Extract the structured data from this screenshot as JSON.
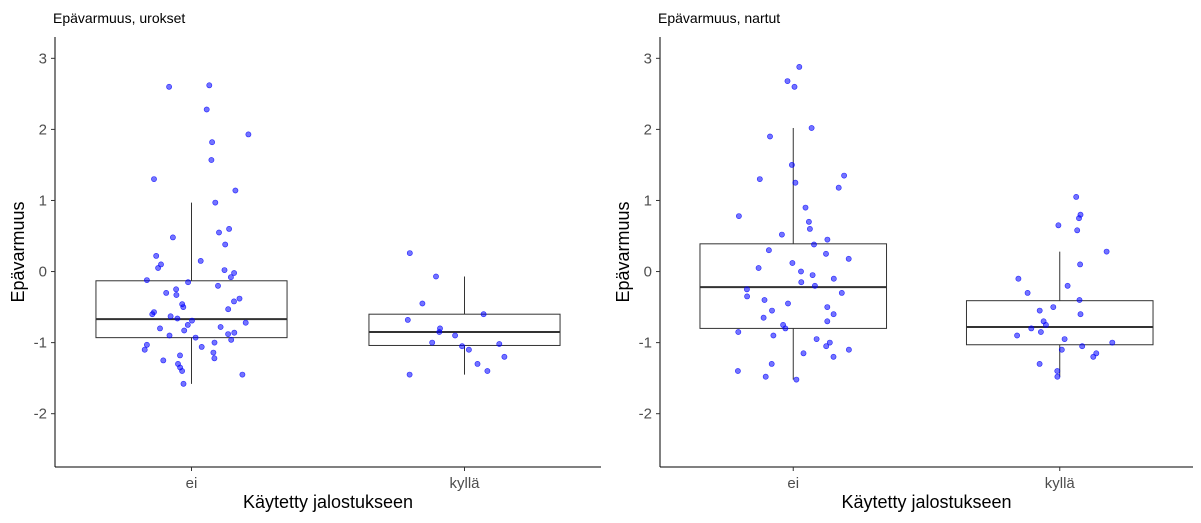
{
  "chart_data": [
    {
      "type": "boxplot",
      "title": "Epävarmuus, urokset",
      "xlabel": "Käytetty jalostukseen",
      "ylabel": "Epävarmuus",
      "categories": [
        "ei",
        "kyllä"
      ],
      "ylim": [
        -2.75,
        3.3
      ],
      "yticks": [
        -2,
        -1,
        0,
        1,
        2,
        3
      ],
      "grid": false,
      "point_color": "#0000ff",
      "boxes": [
        {
          "category": "ei",
          "lower_whisker": -1.58,
          "q1": -0.93,
          "median": -0.67,
          "q3": -0.13,
          "upper_whisker": 0.97
        },
        {
          "category": "kyllä",
          "lower_whisker": -1.45,
          "q1": -1.04,
          "median": -0.85,
          "q3": -0.6,
          "upper_whisker": -0.07
        }
      ],
      "points": [
        {
          "category": "ei",
          "values": [
            2.62,
            2.6,
            2.28,
            1.93,
            1.82,
            1.57,
            1.3,
            1.14,
            0.97,
            0.6,
            0.55,
            0.48,
            0.38,
            0.22,
            0.15,
            0.1,
            0.05,
            0.02,
            -0.02,
            -0.08,
            -0.12,
            -0.15,
            -0.2,
            -0.25,
            -0.3,
            -0.33,
            -0.38,
            -0.42,
            -0.46,
            -0.5,
            -0.53,
            -0.57,
            -0.6,
            -0.63,
            -0.66,
            -0.69,
            -0.72,
            -0.75,
            -0.78,
            -0.8,
            -0.83,
            -0.86,
            -0.88,
            -0.9,
            -0.93,
            -0.96,
            -1.0,
            -1.03,
            -1.06,
            -1.1,
            -1.14,
            -1.18,
            -1.22,
            -1.25,
            -1.3,
            -1.35,
            -1.4,
            -1.45,
            -1.58
          ]
        },
        {
          "category": "kyllä",
          "values": [
            0.26,
            -0.07,
            -0.45,
            -0.6,
            -0.68,
            -0.8,
            -0.85,
            -0.9,
            -1.0,
            -1.02,
            -1.05,
            -1.1,
            -1.2,
            -1.3,
            -1.4,
            -1.45
          ]
        }
      ]
    },
    {
      "type": "boxplot",
      "title": "Epävarmuus, nartut",
      "xlabel": "Käytetty jalostukseen",
      "ylabel": "Epävarmuus",
      "categories": [
        "ei",
        "kyllä"
      ],
      "ylim": [
        -2.75,
        3.3
      ],
      "yticks": [
        -2,
        -1,
        0,
        1,
        2,
        3
      ],
      "grid": false,
      "point_color": "#0000ff",
      "boxes": [
        {
          "category": "ei",
          "lower_whisker": -1.52,
          "q1": -0.8,
          "median": -0.22,
          "q3": 0.39,
          "upper_whisker": 2.02
        },
        {
          "category": "kyllä",
          "lower_whisker": -1.48,
          "q1": -1.03,
          "median": -0.78,
          "q3": -0.41,
          "upper_whisker": 0.28
        }
      ],
      "points": [
        {
          "category": "ei",
          "values": [
            2.88,
            2.68,
            2.6,
            2.02,
            1.9,
            1.5,
            1.35,
            1.3,
            1.25,
            1.18,
            0.9,
            0.78,
            0.7,
            0.6,
            0.52,
            0.45,
            0.38,
            0.3,
            0.25,
            0.18,
            0.12,
            0.05,
            0.0,
            -0.05,
            -0.1,
            -0.15,
            -0.2,
            -0.25,
            -0.3,
            -0.35,
            -0.4,
            -0.45,
            -0.5,
            -0.55,
            -0.6,
            -0.65,
            -0.7,
            -0.75,
            -0.8,
            -0.85,
            -0.9,
            -0.95,
            -1.0,
            -1.05,
            -1.1,
            -1.15,
            -1.2,
            -1.3,
            -1.4,
            -1.48,
            -1.52
          ]
        },
        {
          "category": "kyllä",
          "values": [
            1.05,
            0.8,
            0.75,
            0.65,
            0.58,
            0.28,
            0.1,
            -0.1,
            -0.2,
            -0.3,
            -0.4,
            -0.5,
            -0.55,
            -0.6,
            -0.7,
            -0.75,
            -0.8,
            -0.85,
            -0.9,
            -0.95,
            -1.0,
            -1.05,
            -1.1,
            -1.15,
            -1.2,
            -1.3,
            -1.4,
            -1.48
          ]
        }
      ]
    }
  ]
}
